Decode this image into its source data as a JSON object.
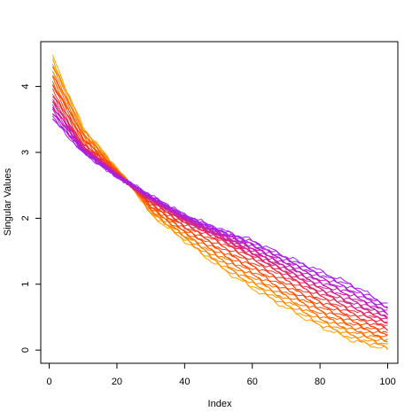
{
  "chart_data": {
    "type": "line",
    "title": "",
    "xlabel": "Index",
    "ylabel": "Singular Values",
    "xlim": [
      -2.5,
      103
    ],
    "ylim": [
      -0.2,
      4.68
    ],
    "x_ticks": [
      0,
      20,
      40,
      60,
      80,
      100
    ],
    "y_ticks": [
      0,
      1,
      2,
      3,
      4
    ],
    "grid": false,
    "legend": "none",
    "color_gradient": [
      "#ffa500",
      "#ff4500",
      "#d02090",
      "#a020f0"
    ],
    "x": [
      1,
      10,
      20,
      25,
      30,
      40,
      50,
      60,
      70,
      80,
      90,
      100
    ],
    "series": [
      {
        "color": "#ffa500",
        "values": [
          4.45,
          3.38,
          2.75,
          2.45,
          2.06,
          1.66,
          1.27,
          0.94,
          0.64,
          0.36,
          0.14,
          0.01
        ]
      },
      {
        "color": "#ff4500",
        "values": [
          3.85,
          3.1,
          2.67,
          2.46,
          2.27,
          1.95,
          1.7,
          1.41,
          1.13,
          0.83,
          0.58,
          0.38
        ]
      },
      {
        "color": "#a020f0",
        "values": [
          3.5,
          3.0,
          2.63,
          2.5,
          2.34,
          2.05,
          1.84,
          1.66,
          1.42,
          1.2,
          0.98,
          0.68
        ]
      }
    ],
    "series_count": 30
  }
}
